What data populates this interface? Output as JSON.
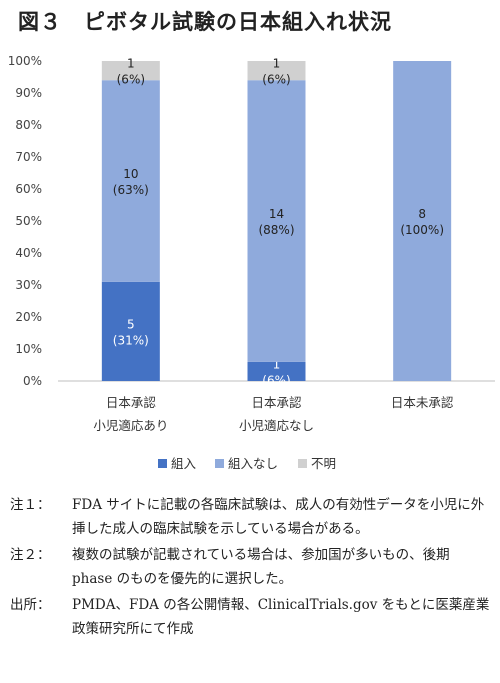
{
  "title": "図３　ピボタル試験の日本組入れ状況",
  "chart_data": {
    "type": "bar",
    "stacked": true,
    "percent": true,
    "ylim": [
      0,
      100
    ],
    "yticks": [
      "0%",
      "10%",
      "20%",
      "30%",
      "40%",
      "50%",
      "60%",
      "70%",
      "80%",
      "90%",
      "100%"
    ],
    "categories": [
      [
        "日本承認",
        "小児適応あり"
      ],
      [
        "日本承認",
        "小児適応なし"
      ],
      [
        "日本未承認"
      ]
    ],
    "series": [
      {
        "name": "組入",
        "color": "#4472c4",
        "values": [
          31,
          6,
          0
        ],
        "labels": [
          "5",
          "1",
          ""
        ],
        "pct_labels": [
          "(31%)",
          "(6%)",
          ""
        ]
      },
      {
        "name": "組入なし",
        "color": "#8faadc",
        "values": [
          63,
          88,
          100
        ],
        "labels": [
          "10",
          "14",
          "8"
        ],
        "pct_labels": [
          "(63%)",
          "(88%)",
          "(100%)"
        ]
      },
      {
        "name": "不明",
        "color": "#d0d0d0",
        "values": [
          6,
          6,
          0
        ],
        "labels": [
          "1",
          "1",
          ""
        ],
        "pct_labels": [
          "(6%)",
          "(6%)",
          ""
        ]
      }
    ],
    "legend_position": "bottom",
    "grid": false
  },
  "notes": [
    {
      "label": "注１：",
      "text": "FDA サイトに記載の各臨床試験は、成人の有効性データを小児に外挿した成人の臨床試験を示している場合がある。"
    },
    {
      "label": "注２：",
      "text": "複数の試験が記載されている場合は、参加国が多いもの、後期 phase のものを優先的に選択した。"
    },
    {
      "label": "出所：",
      "text": "PMDA、FDA の各公開情報、ClinicalTrials.gov をもとに医薬産業政策研究所にて作成"
    }
  ]
}
